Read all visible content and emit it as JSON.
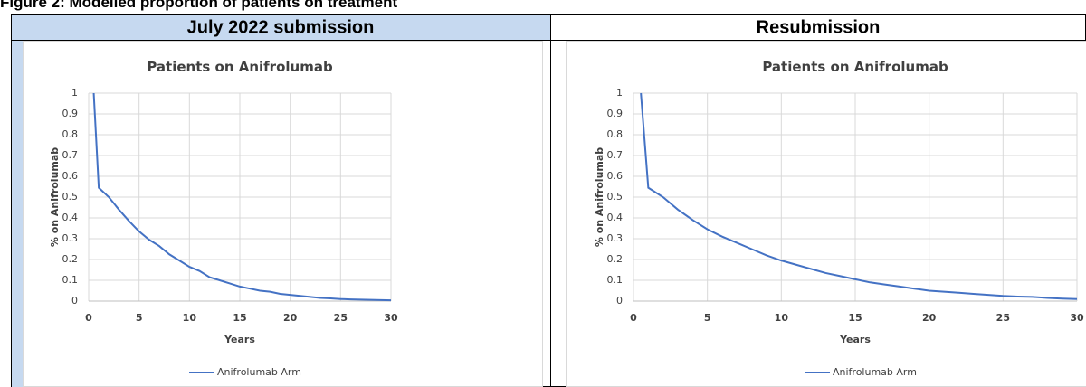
{
  "header": {
    "title": "Figure 2: Modelled proportion of patients on treatment"
  },
  "table": {
    "headers": [
      "July 2022 submission",
      "Resubmission"
    ]
  },
  "chart_data": [
    {
      "type": "line",
      "title": "Patients on Anifrolumab",
      "x_label": "Years",
      "y_label": "% on Anifrolumab",
      "x": [
        0.5,
        1,
        2,
        3,
        4,
        5,
        6,
        7,
        8,
        9,
        10,
        11,
        12,
        13,
        14,
        15,
        16,
        17,
        18,
        19,
        20,
        21,
        22,
        23,
        24,
        25,
        26,
        27,
        28,
        29,
        30
      ],
      "series": [
        {
          "name": "Anifrolumab Arm",
          "color": "#4472c4",
          "values": [
            1,
            0.545,
            0.5,
            0.44,
            0.385,
            0.335,
            0.295,
            0.265,
            0.225,
            0.195,
            0.165,
            0.145,
            0.115,
            0.1,
            0.085,
            0.07,
            0.06,
            0.05,
            0.045,
            0.035,
            0.03,
            0.025,
            0.02,
            0.015,
            0.013,
            0.01,
            0.008,
            0.007,
            0.006,
            0.005,
            0.004
          ]
        }
      ],
      "xlim": [
        0,
        30
      ],
      "ylim": [
        0,
        1
      ],
      "xticks": [
        0,
        5,
        10,
        15,
        20,
        25,
        30
      ],
      "yticks": [
        0,
        0.1,
        0.2,
        0.3,
        0.4,
        0.5,
        0.6,
        0.7,
        0.8,
        0.9,
        1
      ],
      "grid": true,
      "legend": "bottom"
    },
    {
      "type": "line",
      "title": "Patients on Anifrolumab",
      "x_label": "Years",
      "y_label": "% on Anifrolumab",
      "x": [
        0.5,
        1,
        2,
        3,
        4,
        5,
        6,
        7,
        8,
        9,
        10,
        11,
        12,
        13,
        14,
        15,
        16,
        17,
        18,
        19,
        20,
        21,
        22,
        23,
        24,
        25,
        26,
        27,
        28,
        29,
        30
      ],
      "series": [
        {
          "name": "Anifrolumab Arm",
          "color": "#4472c4",
          "values": [
            1,
            0.545,
            0.5,
            0.44,
            0.39,
            0.345,
            0.31,
            0.28,
            0.25,
            0.22,
            0.195,
            0.175,
            0.155,
            0.135,
            0.12,
            0.105,
            0.09,
            0.08,
            0.07,
            0.06,
            0.05,
            0.045,
            0.04,
            0.035,
            0.03,
            0.025,
            0.022,
            0.02,
            0.015,
            0.012,
            0.01
          ]
        }
      ],
      "xlim": [
        0,
        30
      ],
      "ylim": [
        0,
        1
      ],
      "xticks": [
        0,
        5,
        10,
        15,
        20,
        25,
        30
      ],
      "yticks": [
        0,
        0.1,
        0.2,
        0.3,
        0.4,
        0.5,
        0.6,
        0.7,
        0.8,
        0.9,
        1
      ],
      "grid": true,
      "legend": "bottom"
    }
  ]
}
